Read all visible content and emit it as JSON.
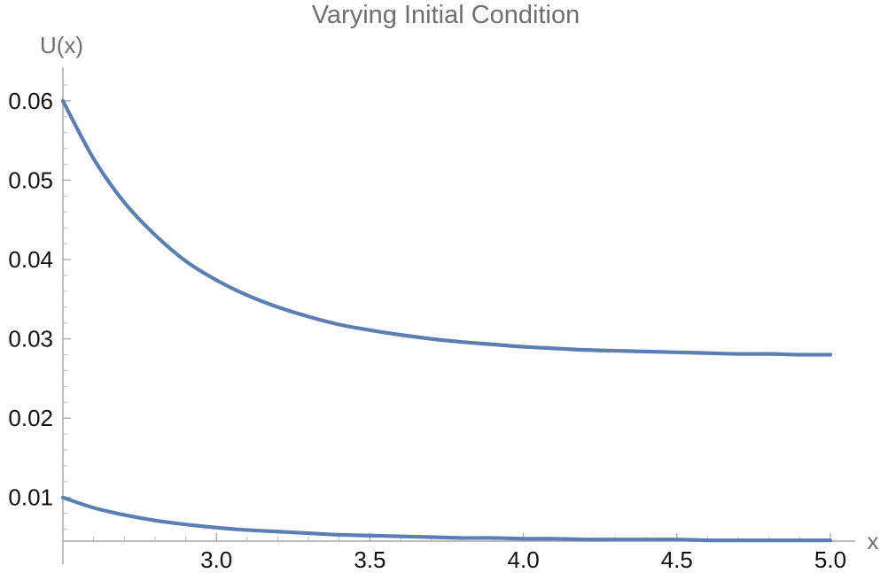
{
  "chart_data": {
    "type": "line",
    "title": "Varying Initial Condition",
    "xlabel": "x",
    "ylabel": "U(x)",
    "xlim": [
      2.5,
      5.0
    ],
    "ylim": [
      0.0045,
      0.062
    ],
    "x_ticks": [
      "3.0",
      "3.5",
      "4.0",
      "4.5",
      "5.0"
    ],
    "y_ticks": [
      "0.01",
      "0.02",
      "0.03",
      "0.04",
      "0.05",
      "0.06"
    ],
    "grid": false,
    "series": [
      {
        "color": "#5b7fb3",
        "x": [
          2.5,
          2.6,
          2.7,
          2.8,
          2.9,
          3.0,
          3.1,
          3.2,
          3.3,
          3.4,
          3.5,
          3.6,
          3.7,
          3.8,
          3.9,
          4.0,
          4.1,
          4.2,
          4.3,
          4.4,
          4.5,
          4.6,
          4.7,
          4.8,
          4.9,
          5.0
        ],
        "values": [
          0.06,
          0.0527,
          0.0472,
          0.0431,
          0.0398,
          0.0374,
          0.0355,
          0.034,
          0.0328,
          0.0318,
          0.0311,
          0.0305,
          0.03,
          0.0296,
          0.0293,
          0.029,
          0.0288,
          0.0286,
          0.0285,
          0.0284,
          0.0283,
          0.0282,
          0.0281,
          0.0281,
          0.028,
          0.028
        ]
      },
      {
        "color": "#5b7fb3",
        "x": [
          2.5,
          2.6,
          2.7,
          2.8,
          2.9,
          3.0,
          3.1,
          3.2,
          3.3,
          3.4,
          3.5,
          3.6,
          3.7,
          3.8,
          3.9,
          4.0,
          4.1,
          4.2,
          4.3,
          4.4,
          4.5,
          4.6,
          4.7,
          4.8,
          4.9,
          5.0
        ],
        "values": [
          0.01,
          0.0087,
          0.0078,
          0.0071,
          0.0066,
          0.0062,
          0.0059,
          0.0057,
          0.0055,
          0.0053,
          0.0052,
          0.0051,
          0.005,
          0.0049,
          0.0049,
          0.0048,
          0.0048,
          0.0047,
          0.0047,
          0.0047,
          0.0047,
          0.0046,
          0.0046,
          0.0046,
          0.0046,
          0.0046
        ]
      }
    ]
  }
}
